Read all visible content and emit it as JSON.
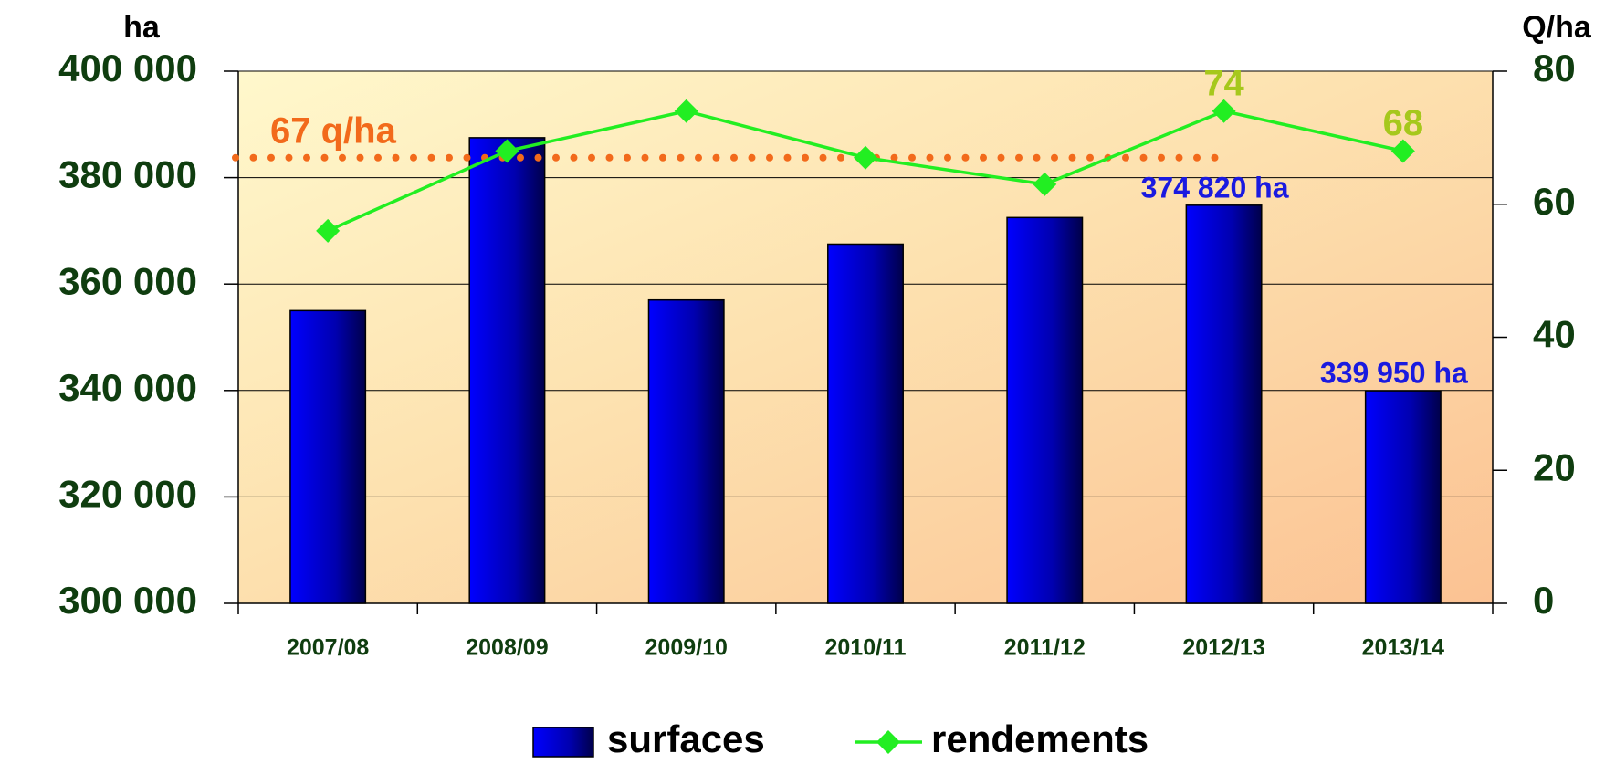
{
  "chart_data": {
    "type": "bar_line",
    "y_axis_label": "ha",
    "y2_axis_label": "Q/ha",
    "categories": [
      "2007/08",
      "2008/09",
      "2009/10",
      "2010/11",
      "2011/12",
      "2012/13",
      "2013/14"
    ],
    "series": [
      {
        "name": "surfaces",
        "type": "bar",
        "color": "#0000e8",
        "label_color": "#1a1ae0",
        "values": [
          355000,
          387500,
          357000,
          367500,
          372500,
          374820,
          339950
        ],
        "value_labels": [
          null,
          null,
          null,
          null,
          null,
          "374 820 ha",
          "339 950 ha"
        ]
      },
      {
        "name": "rendements",
        "type": "line",
        "axis": "y2",
        "color": "#22ee22",
        "label_color": "#a6c81c",
        "values": [
          56,
          68,
          74,
          67,
          63,
          74,
          68
        ],
        "value_labels": [
          null,
          null,
          null,
          null,
          null,
          "74",
          "68"
        ]
      }
    ],
    "reference_line": {
      "value": 67,
      "axis": "y2",
      "label": "67 q/ha",
      "color": "#f26a1b",
      "style": "dotted"
    },
    "ylim": [
      300000,
      400000
    ],
    "yticks": [
      {
        "value": 300000,
        "label": "300 000"
      },
      {
        "value": 320000,
        "label": "320 000"
      },
      {
        "value": 340000,
        "label": "340 000"
      },
      {
        "value": 360000,
        "label": "360 000"
      },
      {
        "value": 380000,
        "label": "380 000"
      },
      {
        "value": 400000,
        "label": "400 000"
      }
    ],
    "y2lim": [
      0,
      80
    ],
    "y2ticks": [
      0,
      20,
      40,
      60,
      80
    ],
    "grid": true,
    "legend": "bottom"
  }
}
